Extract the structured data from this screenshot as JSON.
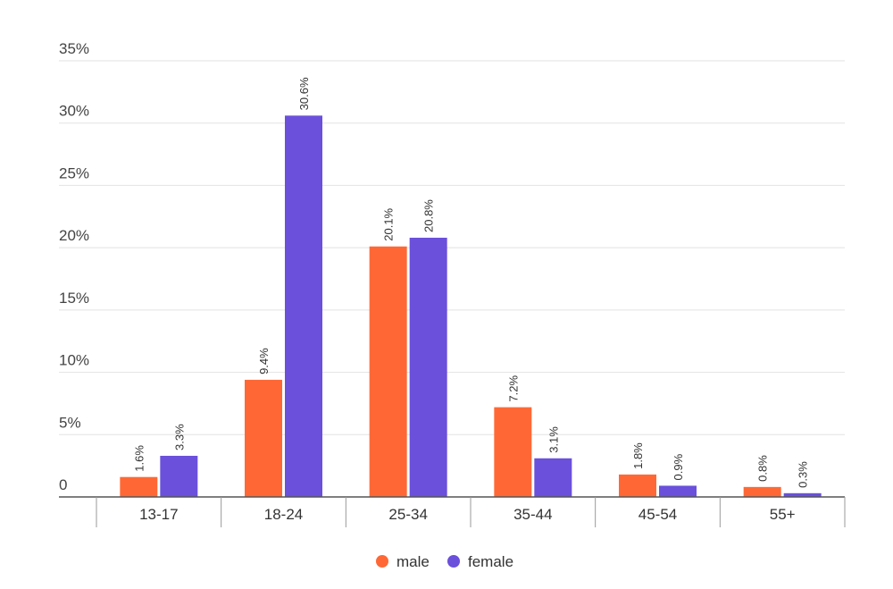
{
  "chart_data": {
    "type": "bar",
    "title": "",
    "xlabel": "",
    "ylabel": "",
    "categories": [
      "13-17",
      "18-24",
      "25-34",
      "35-44",
      "45-54",
      "55+"
    ],
    "series": [
      {
        "name": "male",
        "color": "#ff6835",
        "values": [
          1.6,
          9.4,
          20.1,
          7.2,
          1.8,
          0.8
        ],
        "labels": [
          "1.6%",
          "9.4%",
          "20.1%",
          "7.2%",
          "1.8%",
          "0.8%"
        ]
      },
      {
        "name": "female",
        "color": "#6a50db",
        "values": [
          3.3,
          30.6,
          20.8,
          3.1,
          0.9,
          0.3
        ],
        "labels": [
          "3.3%",
          "30.6%",
          "20.8%",
          "3.1%",
          "0.9%",
          "0.3%"
        ]
      }
    ],
    "ylim": [
      0,
      35
    ],
    "yticks": [
      0,
      5,
      10,
      15,
      20,
      25,
      30,
      35
    ],
    "ytick_labels": [
      "0",
      "5%",
      "10%",
      "15%",
      "20%",
      "25%",
      "30%",
      "35%"
    ],
    "grid": true,
    "legend_position": "bottom-center"
  }
}
